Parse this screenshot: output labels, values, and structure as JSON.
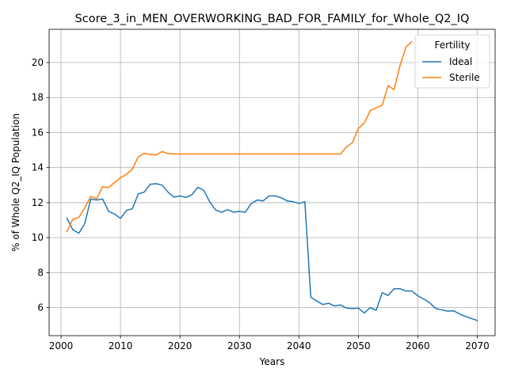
{
  "chart_data": {
    "type": "line",
    "title": "Score_3_in_MEN_OVERWORKING_BAD_FOR_FAMILY_for_Whole_Q2_IQ",
    "xlabel": "Years",
    "ylabel": "% of Whole Q2_IQ Population",
    "xlim": [
      1998,
      2073
    ],
    "ylim": [
      4.4,
      21.9
    ],
    "xticks": [
      2000,
      2010,
      2020,
      2030,
      2040,
      2050,
      2060,
      2070
    ],
    "yticks": [
      6,
      8,
      10,
      12,
      14,
      16,
      18,
      20
    ],
    "grid": true,
    "legend": {
      "title": "Fertility",
      "placement": "top-right"
    },
    "series": [
      {
        "name": "Ideal",
        "color": "#1f77b4",
        "x": [
          2001,
          2002,
          2003,
          2004,
          2005,
          2006,
          2007,
          2008,
          2009,
          2010,
          2011,
          2012,
          2013,
          2014,
          2015,
          2016,
          2017,
          2018,
          2019,
          2020,
          2021,
          2022,
          2023,
          2024,
          2025,
          2026,
          2027,
          2028,
          2029,
          2030,
          2031,
          2032,
          2033,
          2034,
          2035,
          2036,
          2037,
          2038,
          2039,
          2040,
          2041,
          2042,
          2043,
          2044,
          2045,
          2046,
          2047,
          2048,
          2049,
          2050,
          2051,
          2052,
          2053,
          2054,
          2055,
          2056,
          2057,
          2058,
          2059,
          2060,
          2061,
          2062,
          2063,
          2064,
          2065,
          2066,
          2067,
          2068,
          2069,
          2070
        ],
        "values": [
          11.1,
          10.45,
          10.25,
          10.8,
          12.2,
          12.15,
          12.2,
          11.5,
          11.35,
          11.1,
          11.55,
          11.65,
          12.5,
          12.6,
          13.05,
          13.08,
          13.0,
          12.6,
          12.32,
          12.38,
          12.3,
          12.45,
          12.88,
          12.7,
          12.05,
          11.58,
          11.45,
          11.6,
          11.45,
          11.5,
          11.45,
          11.95,
          12.15,
          12.1,
          12.38,
          12.38,
          12.28,
          12.1,
          12.05,
          11.95,
          12.05,
          6.6,
          6.38,
          6.18,
          6.25,
          6.1,
          6.15,
          5.98,
          5.95,
          5.98,
          5.7,
          6.0,
          5.85,
          6.85,
          6.7,
          7.08,
          7.08,
          6.95,
          6.95,
          6.68,
          6.5,
          6.28,
          5.95,
          5.88,
          5.8,
          5.82,
          5.65,
          5.5,
          5.38,
          5.27
        ]
      },
      {
        "name": "Sterile",
        "color": "#ff7f0e",
        "x": [
          2001,
          2002,
          2003,
          2004,
          2005,
          2006,
          2007,
          2008,
          2009,
          2010,
          2011,
          2012,
          2013,
          2014,
          2015,
          2016,
          2017,
          2018,
          2019,
          2020,
          2021,
          2022,
          2023,
          2024,
          2025,
          2026,
          2027,
          2028,
          2029,
          2030,
          2031,
          2032,
          2033,
          2034,
          2035,
          2036,
          2037,
          2038,
          2039,
          2040,
          2041,
          2042,
          2043,
          2044,
          2045,
          2046,
          2047,
          2048,
          2049,
          2050,
          2051,
          2052,
          2053,
          2054,
          2055,
          2056,
          2057,
          2058,
          2059
        ],
        "values": [
          10.35,
          11.05,
          11.15,
          11.7,
          12.35,
          12.22,
          12.92,
          12.85,
          13.15,
          13.42,
          13.62,
          13.92,
          14.62,
          14.82,
          14.75,
          14.72,
          14.92,
          14.8,
          14.78,
          14.78,
          14.78,
          14.78,
          14.78,
          14.78,
          14.78,
          14.78,
          14.78,
          14.78,
          14.78,
          14.78,
          14.78,
          14.78,
          14.78,
          14.78,
          14.78,
          14.78,
          14.78,
          14.78,
          14.78,
          14.78,
          14.78,
          14.78,
          14.78,
          14.78,
          14.78,
          14.78,
          14.78,
          15.18,
          15.42,
          16.22,
          16.55,
          17.25,
          17.42,
          17.55,
          18.68,
          18.45,
          19.82,
          20.88,
          21.2
        ]
      }
    ]
  }
}
